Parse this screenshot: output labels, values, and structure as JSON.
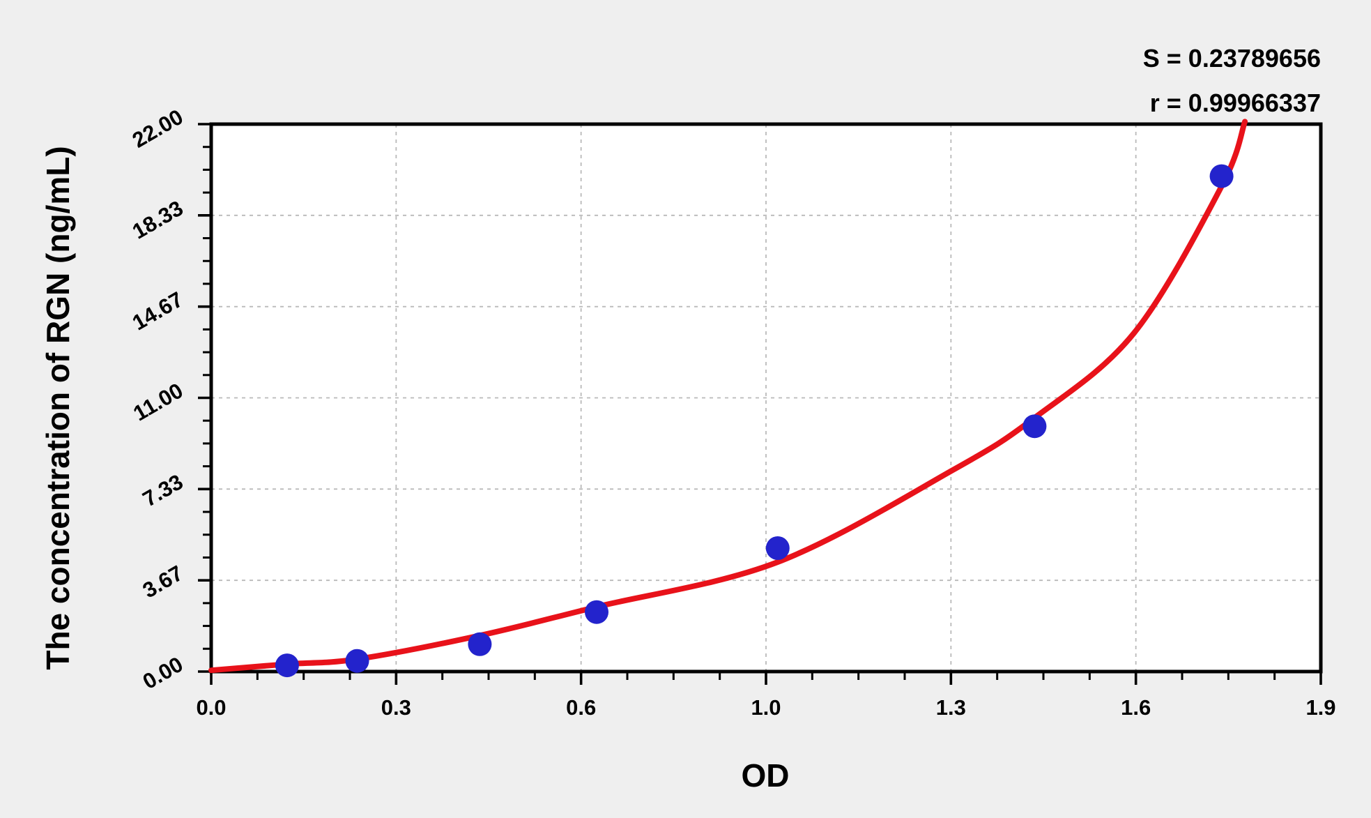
{
  "colors": {
    "page_bg": "#efefef",
    "plot_bg": "#ffffff",
    "axis": "#000000",
    "grid": "#b9b9b9",
    "curve_red": "#e8121a",
    "point_blue": "#2323cc"
  },
  "chart_data": {
    "type": "scatter",
    "title": "",
    "xlabel": "OD",
    "ylabel": "The concentration of RGN (ng/mL)",
    "xlim": [
      0,
      1.9
    ],
    "ylim": [
      0,
      22
    ],
    "x_tick_labels": [
      "0.0",
      "0.3",
      "0.6",
      "1.0",
      "1.3",
      "1.6",
      "1.9"
    ],
    "y_tick_labels": [
      "0.00",
      "3.67",
      "7.33",
      "11.00",
      "14.67",
      "18.33",
      "22.00"
    ],
    "minor_ticks_per_major": 3,
    "grid": "dashed at major ticks",
    "legend_position": "none",
    "series": [
      {
        "name": "standard-points",
        "type": "scatter",
        "marker": "circle",
        "color": "#2323cc",
        "points": [
          [
            0.13,
            0.25
          ],
          [
            0.25,
            0.43
          ],
          [
            0.46,
            1.1
          ],
          [
            0.66,
            2.39
          ],
          [
            0.97,
            4.96
          ],
          [
            1.41,
            9.86
          ],
          [
            1.73,
            19.91
          ]
        ]
      },
      {
        "name": "fitted-curve",
        "type": "line",
        "color": "#e8121a",
        "points": [
          [
            0,
            0.05
          ],
          [
            0.13,
            0.3
          ],
          [
            0.25,
            0.5
          ],
          [
            0.46,
            1.45
          ],
          [
            0.66,
            2.6
          ],
          [
            0.97,
            4.4
          ],
          [
            1.27,
            8.1
          ],
          [
            1.41,
            10.2
          ],
          [
            1.58,
            13.6
          ],
          [
            1.73,
            19.5
          ],
          [
            1.77,
            22.1
          ]
        ]
      }
    ],
    "annotations": {
      "s_label": "S = 0.23789656",
      "r_label": "r = 0.99966337"
    },
    "stats": {
      "S": 0.23789656,
      "r": 0.99966337
    }
  }
}
